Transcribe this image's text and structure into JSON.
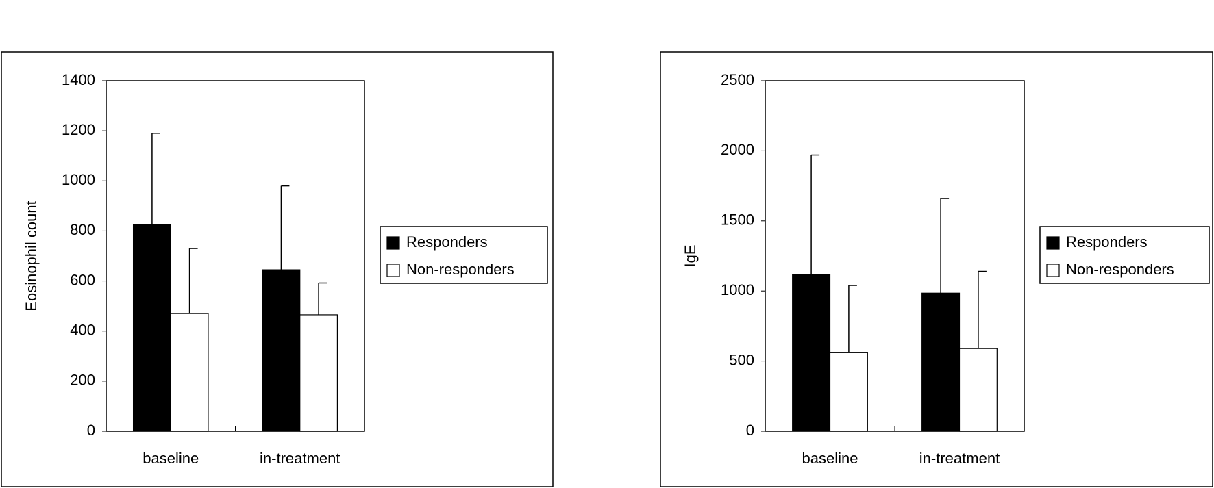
{
  "chart_data": [
    {
      "type": "bar",
      "ylabel": "Eosinophil count",
      "categories": [
        "baseline",
        "in-treatment"
      ],
      "series": [
        {
          "name": "Responders",
          "color": "#000000",
          "values": [
            825,
            645
          ],
          "errors": [
            365,
            335
          ]
        },
        {
          "name": "Non-responders",
          "color": "#ffffff",
          "values": [
            470,
            465
          ],
          "errors": [
            260,
            127
          ]
        }
      ],
      "ylim": [
        0,
        1400
      ],
      "yticks": [
        0,
        200,
        400,
        600,
        800,
        1000,
        1200,
        1400
      ],
      "legend": "right"
    },
    {
      "type": "bar",
      "ylabel": "IgE",
      "categories": [
        "baseline",
        "in-treatment"
      ],
      "series": [
        {
          "name": "Responders",
          "color": "#000000",
          "values": [
            1120,
            985
          ],
          "errors": [
            850,
            675
          ]
        },
        {
          "name": "Non-responders",
          "color": "#ffffff",
          "values": [
            560,
            590
          ],
          "errors": [
            480,
            550
          ]
        }
      ],
      "ylim": [
        0,
        2500
      ],
      "yticks": [
        0,
        500,
        1000,
        1500,
        2000,
        2500
      ],
      "legend": "right"
    }
  ]
}
